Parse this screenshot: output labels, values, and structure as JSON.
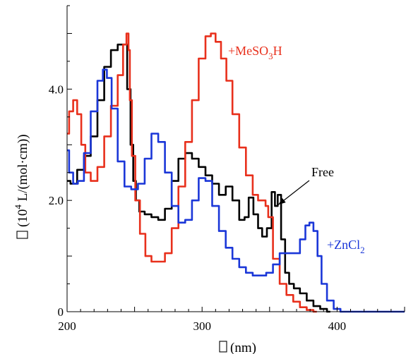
{
  "chart_data": {
    "type": "line",
    "x_unit_label": "(nm)",
    "y_unit_label": "(10",
    "y_unit_sup": "4",
    "y_unit_rest": " L/(mol·cm))",
    "x_symbol_glyph": "missing-glyph",
    "y_symbol_glyph": "missing-glyph",
    "xlim": [
      200,
      450
    ],
    "ylim": [
      0,
      5.5
    ],
    "x_ticks": [
      200,
      300,
      400
    ],
    "x_tick_labels": [
      "200",
      "300",
      "400"
    ],
    "y_ticks": [
      0,
      2,
      4
    ],
    "y_tick_labels": [
      "0",
      "2.0",
      "4.0"
    ],
    "grid": false,
    "colors": {
      "free": "#000000",
      "acid": "#e8301c",
      "zinc": "#1b37d8"
    },
    "series": [
      {
        "name": "Free",
        "color": "#000000",
        "x": [
          200,
          205,
          210,
          215,
          220,
          225,
          230,
          235,
          240,
          243,
          246,
          248,
          250,
          252,
          255,
          260,
          265,
          270,
          275,
          280,
          285,
          290,
          295,
          300,
          305,
          310,
          315,
          320,
          325,
          330,
          333,
          336,
          340,
          343,
          346,
          350,
          353,
          355,
          357,
          360,
          363,
          366,
          370,
          375,
          380,
          385,
          390,
          395
        ],
        "y": [
          2.35,
          2.3,
          2.55,
          2.8,
          3.15,
          3.8,
          4.4,
          4.7,
          4.8,
          4.8,
          4.0,
          3.0,
          2.35,
          2.0,
          1.8,
          1.75,
          1.7,
          1.65,
          1.85,
          2.35,
          2.75,
          2.85,
          2.75,
          2.6,
          2.45,
          2.3,
          2.1,
          2.25,
          2.0,
          1.65,
          1.7,
          2.05,
          1.75,
          1.5,
          1.35,
          1.5,
          2.15,
          1.9,
          2.1,
          1.3,
          0.7,
          0.5,
          0.42,
          0.33,
          0.2,
          0.1,
          0.05,
          0.0
        ]
      },
      {
        "name": "+MeSO₃H",
        "label_parts": [
          "+MeSO",
          "3",
          "H"
        ],
        "color": "#e8301c",
        "x": [
          200,
          203,
          206,
          209,
          212,
          215,
          220,
          225,
          230,
          235,
          240,
          243,
          245,
          246,
          247,
          249,
          252,
          256,
          260,
          265,
          270,
          275,
          280,
          285,
          290,
          295,
          300,
          305,
          308,
          312,
          316,
          320,
          325,
          330,
          335,
          340,
          343,
          346,
          348,
          350,
          355,
          360,
          365,
          370,
          375,
          380,
          385
        ],
        "y": [
          3.2,
          3.6,
          3.8,
          3.55,
          3.0,
          2.5,
          2.35,
          2.6,
          3.15,
          3.7,
          4.25,
          4.8,
          5.0,
          4.7,
          3.8,
          2.8,
          2.0,
          1.4,
          1.0,
          0.9,
          0.9,
          1.05,
          1.5,
          2.25,
          3.05,
          3.8,
          4.55,
          4.95,
          5.0,
          4.85,
          4.55,
          4.15,
          3.55,
          2.95,
          2.45,
          2.1,
          2.0,
          2.0,
          1.9,
          1.7,
          0.95,
          0.5,
          0.3,
          0.18,
          0.08,
          0.03,
          0.0
        ]
      },
      {
        "name": "+ZnCl₂",
        "label_parts": [
          "+ZnCl",
          "2",
          ""
        ],
        "color": "#1b37d8",
        "x": [
          200,
          203,
          206,
          210,
          215,
          220,
          225,
          228,
          231,
          235,
          240,
          245,
          250,
          255,
          260,
          265,
          270,
          275,
          280,
          285,
          290,
          295,
          300,
          305,
          310,
          315,
          320,
          325,
          330,
          335,
          340,
          345,
          350,
          355,
          360,
          365,
          370,
          375,
          378,
          381,
          384,
          387,
          390,
          395,
          400,
          405,
          410,
          420,
          450
        ],
        "y": [
          2.9,
          2.5,
          2.3,
          2.35,
          2.85,
          3.6,
          4.15,
          4.35,
          4.2,
          3.65,
          2.7,
          2.25,
          2.2,
          2.3,
          2.75,
          3.2,
          3.05,
          2.5,
          1.9,
          1.6,
          1.65,
          2.0,
          2.4,
          2.35,
          1.9,
          1.45,
          1.15,
          0.95,
          0.8,
          0.7,
          0.65,
          0.65,
          0.7,
          0.85,
          1.05,
          1.05,
          1.05,
          1.3,
          1.55,
          1.6,
          1.45,
          1.0,
          0.5,
          0.2,
          0.05,
          0.0,
          0.0,
          0.0,
          0.0
        ]
      }
    ],
    "annotations": [
      {
        "text": "Free",
        "series": "Free",
        "arrow_to": [
          355,
          1.95
        ]
      }
    ]
  }
}
